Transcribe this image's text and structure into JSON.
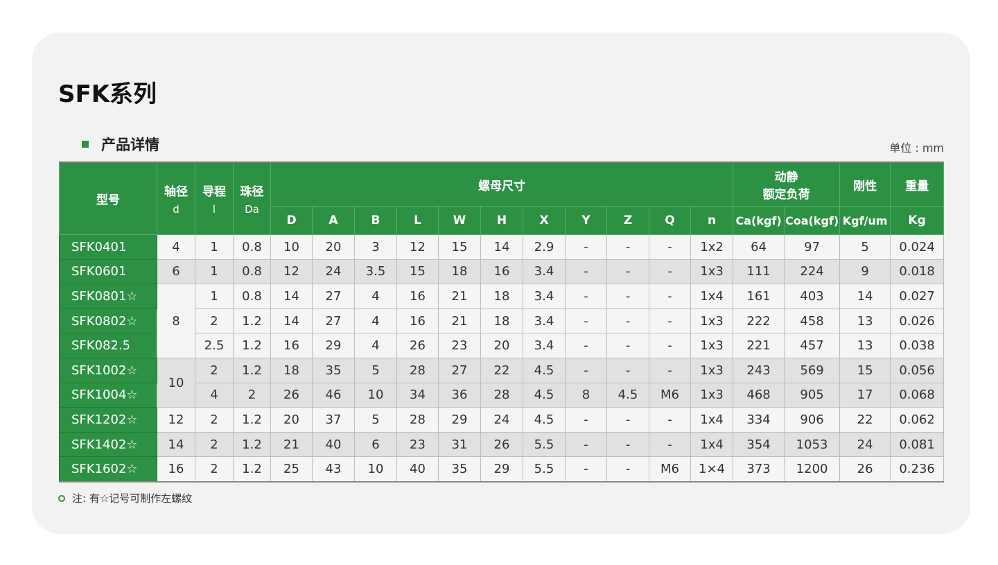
{
  "title": "SFK系列",
  "section": "产品详情",
  "unit": "单位 : mm",
  "colors": {
    "accent": "#2d9144",
    "row_light": "#f4f5f4",
    "row_gray": "#e2e1df"
  },
  "header": {
    "model": "型号",
    "d": {
      "label": "轴径",
      "sub": "d"
    },
    "l": {
      "label": "导程",
      "sub": "l"
    },
    "da": {
      "label": "珠径",
      "sub": "Da"
    },
    "nut": "螺母尺寸",
    "load": {
      "line1": "动静",
      "line2": "额定负荷"
    },
    "stiffness": "刚性",
    "weight": "重量",
    "sub_columns": [
      "D",
      "A",
      "B",
      "L",
      "W",
      "H",
      "X",
      "Y",
      "Z",
      "Q",
      "n"
    ],
    "ca": "Ca(kgf)",
    "coa": "Coa(kgf)",
    "stiffness_unit": "Kgf/um",
    "weight_unit": "Kg"
  },
  "rows": [
    {
      "model": "SFK0401",
      "d": "4",
      "l": "1",
      "da": "0.8",
      "D": "10",
      "A": "20",
      "B": "3",
      "L": "12",
      "W": "15",
      "H": "14",
      "X": "2.9",
      "Y": "-",
      "Z": "-",
      "Q": "-",
      "n": "1x2",
      "ca": "64",
      "coa": "97",
      "k": "5",
      "kg": "0.024"
    },
    {
      "model": "SFK0601",
      "d": "6",
      "l": "1",
      "da": "0.8",
      "D": "12",
      "A": "24",
      "B": "3.5",
      "L": "15",
      "W": "18",
      "H": "16",
      "X": "3.4",
      "Y": "-",
      "Z": "-",
      "Q": "-",
      "n": "1x3",
      "ca": "111",
      "coa": "224",
      "k": "9",
      "kg": "0.018"
    },
    {
      "model": "SFK0801☆",
      "d": "8",
      "l": "1",
      "da": "0.8",
      "D": "14",
      "A": "27",
      "B": "4",
      "L": "16",
      "W": "21",
      "H": "18",
      "X": "3.4",
      "Y": "-",
      "Z": "-",
      "Q": "-",
      "n": "1x4",
      "ca": "161",
      "coa": "403",
      "k": "14",
      "kg": "0.027"
    },
    {
      "model": "SFK0802☆",
      "d": "8",
      "l": "2",
      "da": "1.2",
      "D": "14",
      "A": "27",
      "B": "4",
      "L": "16",
      "W": "21",
      "H": "18",
      "X": "3.4",
      "Y": "-",
      "Z": "-",
      "Q": "-",
      "n": "1x3",
      "ca": "222",
      "coa": "458",
      "k": "13",
      "kg": "0.026"
    },
    {
      "model": "SFK082.5",
      "d": "8",
      "l": "2.5",
      "da": "1.2",
      "D": "16",
      "A": "29",
      "B": "4",
      "L": "26",
      "W": "23",
      "H": "20",
      "X": "3.4",
      "Y": "-",
      "Z": "-",
      "Q": "-",
      "n": "1x3",
      "ca": "221",
      "coa": "457",
      "k": "13",
      "kg": "0.038"
    },
    {
      "model": "SFK1002☆",
      "d": "10",
      "l": "2",
      "da": "1.2",
      "D": "18",
      "A": "35",
      "B": "5",
      "L": "28",
      "W": "27",
      "H": "22",
      "X": "4.5",
      "Y": "-",
      "Z": "-",
      "Q": "-",
      "n": "1x3",
      "ca": "243",
      "coa": "569",
      "k": "15",
      "kg": "0.056"
    },
    {
      "model": "SFK1004☆",
      "d": "10",
      "l": "4",
      "da": "2",
      "D": "26",
      "A": "46",
      "B": "10",
      "L": "34",
      "W": "36",
      "H": "28",
      "X": "4.5",
      "Y": "8",
      "Z": "4.5",
      "Q": "M6",
      "n": "1x3",
      "ca": "468",
      "coa": "905",
      "k": "17",
      "kg": "0.068"
    },
    {
      "model": "SFK1202☆",
      "d": "12",
      "l": "2",
      "da": "1.2",
      "D": "20",
      "A": "37",
      "B": "5",
      "L": "28",
      "W": "29",
      "H": "24",
      "X": "4.5",
      "Y": "-",
      "Z": "-",
      "Q": "-",
      "n": "1x4",
      "ca": "334",
      "coa": "906",
      "k": "22",
      "kg": "0.062"
    },
    {
      "model": "SFK1402☆",
      "d": "14",
      "l": "2",
      "da": "1.2",
      "D": "21",
      "A": "40",
      "B": "6",
      "L": "23",
      "W": "31",
      "H": "26",
      "X": "5.5",
      "Y": "-",
      "Z": "-",
      "Q": "-",
      "n": "1x4",
      "ca": "354",
      "coa": "1053",
      "k": "24",
      "kg": "0.081"
    },
    {
      "model": "SFK1602☆",
      "d": "16",
      "l": "2",
      "da": "1.2",
      "D": "25",
      "A": "43",
      "B": "10",
      "L": "40",
      "W": "35",
      "H": "29",
      "X": "5.5",
      "Y": "-",
      "Z": "-",
      "Q": "M6",
      "n": "1×4",
      "ca": "373",
      "coa": "1200",
      "k": "26",
      "kg": "0.236"
    }
  ],
  "note": "注: 有☆记号可制作左螺纹"
}
